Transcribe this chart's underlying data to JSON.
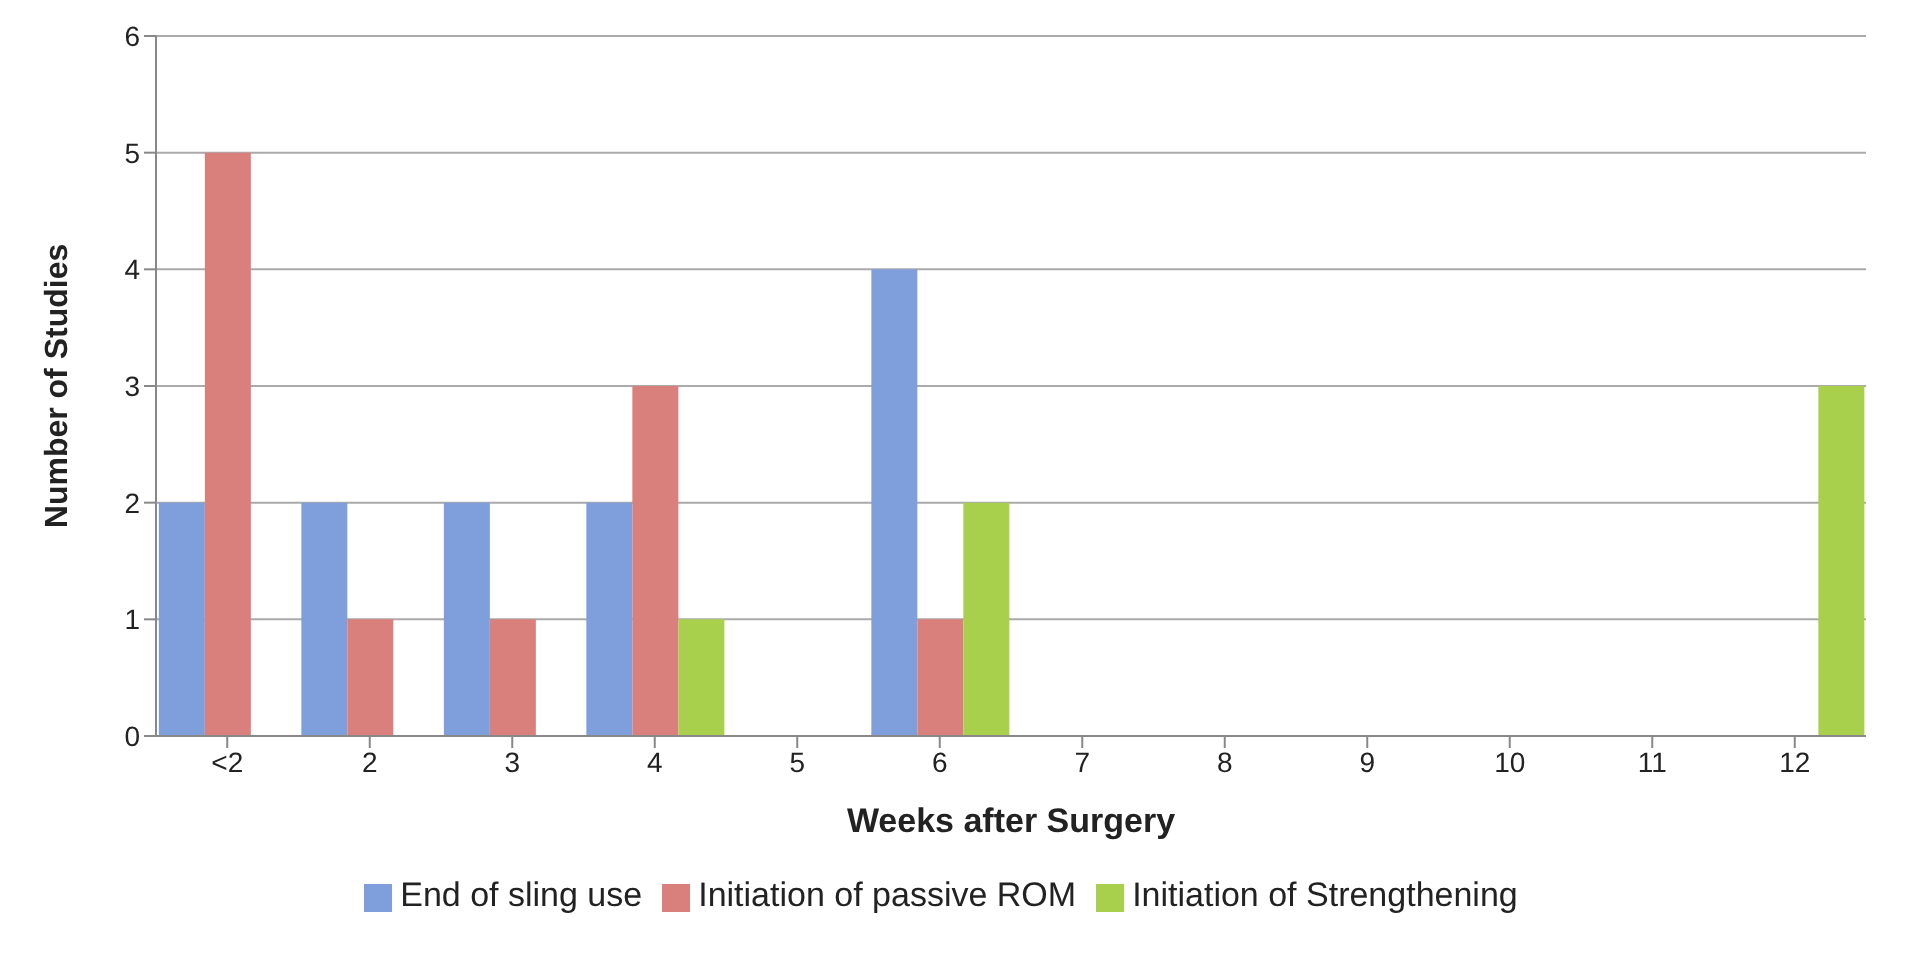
{
  "chart_data": {
    "type": "bar",
    "xlabel": "Weeks after Surgery",
    "ylabel": "Number of Studies",
    "categories": [
      "<2",
      "2",
      "3",
      "4",
      "5",
      "6",
      "7",
      "8",
      "9",
      "10",
      "11",
      "12"
    ],
    "series": [
      {
        "name": "End of sling use",
        "color": "#7f9fdc",
        "values": [
          2,
          2,
          2,
          2,
          0,
          4,
          0,
          0,
          0,
          0,
          0,
          0
        ]
      },
      {
        "name": "Initiation of passive ROM",
        "color": "#d9807c",
        "values": [
          5,
          1,
          1,
          3,
          0,
          1,
          0,
          0,
          0,
          0,
          0,
          0
        ]
      },
      {
        "name": "Initiation of Strengthening",
        "color": "#a9d04c",
        "values": [
          0,
          0,
          0,
          1,
          0,
          2,
          0,
          0,
          0,
          0,
          0,
          3
        ]
      }
    ],
    "ylim": [
      0,
      6
    ],
    "yticks": [
      0,
      1,
      2,
      3,
      4,
      5,
      6
    ],
    "grid": "y",
    "legend": "bottom"
  }
}
